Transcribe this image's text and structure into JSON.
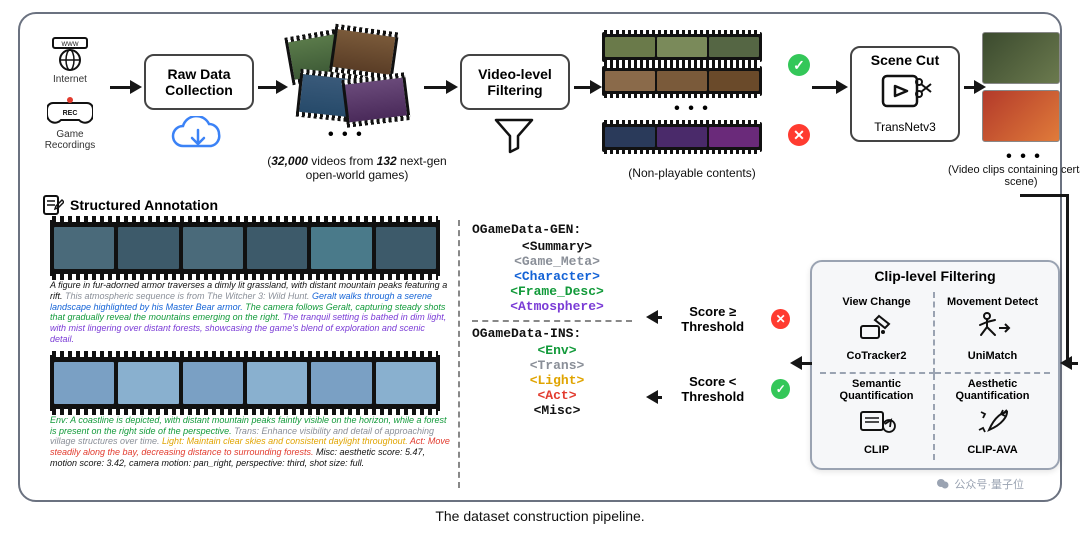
{
  "caption": "The dataset construction pipeline.",
  "sources": {
    "internet": "Internet",
    "recordings": "Game\nRecordings"
  },
  "rawdata": {
    "title": "Raw Data Collection"
  },
  "video_corpus": {
    "caption_prefix": "(",
    "count_videos": "32,000",
    "mid1": " videos from ",
    "count_games": "132",
    "mid2": " next-gen open-world games)",
    "ellipsis": "• • •"
  },
  "vlfilter": {
    "title": "Video-level Filtering"
  },
  "nonplayable": {
    "caption": "(Non-playable contents)",
    "ellipsis": "• • •"
  },
  "scenecut": {
    "title": "Scene Cut",
    "tool": "TransNetv3"
  },
  "scene_clips": {
    "caption": "(Video clips containing certain scene)",
    "ellipsis": "• • •",
    "thumb_colors": [
      "linear-gradient(135deg,#3b4a2e,#6b7a4e)",
      "linear-gradient(135deg,#b33a2a,#e07b3a)"
    ]
  },
  "structured": {
    "label": "Structured Annotation"
  },
  "schema_gen": {
    "header": "OGameData-GEN:",
    "lines": [
      {
        "t": "<Summary>",
        "c": "#111111"
      },
      {
        "t": "<Game_Meta>",
        "c": "#8a8f98"
      },
      {
        "t": "<Character>",
        "c": "#1463d6"
      },
      {
        "t": "<Frame_Desc>",
        "c": "#129a3a"
      },
      {
        "t": "<Atmosphere>",
        "c": "#7a3bd6"
      }
    ]
  },
  "schema_ins": {
    "header": "OGameData-INS:",
    "lines": [
      {
        "t": "<Env>",
        "c": "#129a3a"
      },
      {
        "t": "<Trans>",
        "c": "#8a8f98"
      },
      {
        "t": "<Light>",
        "c": "#e0a400"
      },
      {
        "t": "<Act>",
        "c": "#e23b2e"
      },
      {
        "t": "<Misc>",
        "c": "#111111"
      }
    ]
  },
  "threshold": {
    "ge": "Score ≥ Threshold",
    "lt": "Score < Threshold"
  },
  "clipfilter": {
    "title": "Clip-level Filtering",
    "cells": [
      {
        "cat": "View Change",
        "tool": "CoTracker2"
      },
      {
        "cat": "Movement Detect",
        "tool": "UniMatch"
      },
      {
        "cat": "Semantic Quantification",
        "tool": "CLIP"
      },
      {
        "cat": "Aesthetic Quantification",
        "tool": "CLIP-AVA"
      }
    ]
  },
  "annot_gen": {
    "strip_colors": [
      "#4a6a7a",
      "#3d5a6a",
      "#4a6a7a",
      "#3d5a6a",
      "#4a7a8a",
      "#3d5a6a"
    ],
    "text": [
      {
        "c": "#111111",
        "t": "A figure in fur-adorned armor traverses a dimly lit grassland, with distant mountain peaks featuring a rift. "
      },
      {
        "c": "#8a8f98",
        "t": "This atmospheric sequence is from The Witcher 3: Wild Hunt. "
      },
      {
        "c": "#1463d6",
        "t": "Geralt walks through a serene landscape highlighted by his Master Bear armor. "
      },
      {
        "c": "#129a3a",
        "t": "The camera follows Geralt, capturing steady shots that gradually reveal the mountains emerging on the right. "
      },
      {
        "c": "#7a3bd6",
        "t": "The tranquil setting is bathed in dim light, with mist lingering over distant forests, showcasing the game's blend of exploration and scenic detail."
      }
    ]
  },
  "annot_ins": {
    "strip_colors": [
      "#7aa0c4",
      "#89b0cf",
      "#7aa0c4",
      "#89b0cf",
      "#7aa0c4",
      "#89b0cf"
    ],
    "text": [
      {
        "c": "#129a3a",
        "t": "Env: A coastline is depicted, with distant mountain peaks faintly visible on the horizon, while a forest is present on the right side of the perspective. "
      },
      {
        "c": "#8a8f98",
        "t": "Trans: Enhance visibility and detail of approaching village structures over time. "
      },
      {
        "c": "#e0a400",
        "t": "Light: Maintain clear skies and consistent daylight throughout. "
      },
      {
        "c": "#e23b2e",
        "t": "Act: Move steadily along the bay, decreasing distance to surrounding forests. "
      },
      {
        "c": "#111111",
        "t": "Misc: aesthetic score: 5.47, motion score: 3.42, camera motion: pan_right, perspective: third, shot size: full."
      }
    ]
  },
  "filmstrips": {
    "good": [
      "#6a7a4a",
      "#7a8a5a",
      "#556644"
    ],
    "good2": [
      "#8a6a4a",
      "#7a5a3a",
      "#6a4a2a"
    ],
    "bad": [
      "#2a3a5a",
      "#4a2a6a",
      "#6a2a7a"
    ]
  },
  "watermark": "公众号·量子位",
  "colors": {
    "border": "#6b7280",
    "arrow": "#161616"
  }
}
